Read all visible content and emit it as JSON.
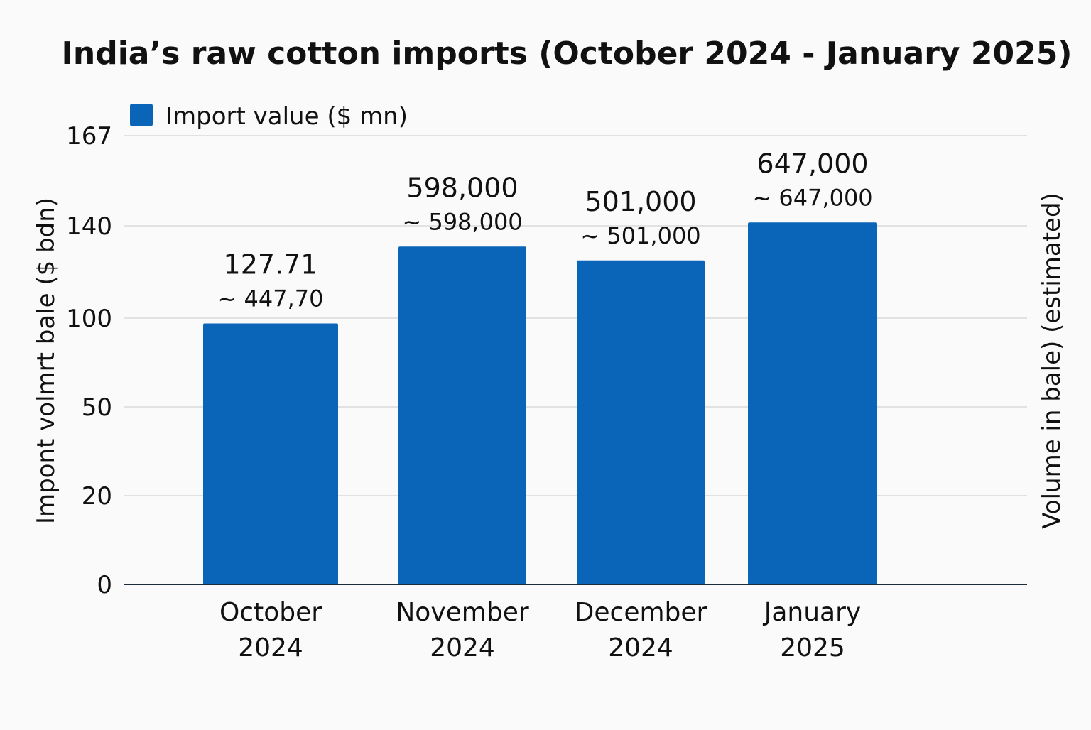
{
  "chart_data": {
    "type": "bar",
    "title": "India’s raw cotton imports (October 2024 - January 2025)",
    "legend": {
      "label": "Import value ($ mn)",
      "placement": "top-left"
    },
    "ylabel_left": "Impont volmrt bale ($ bdn)",
    "ylabel_right": "Volume in bale) (estimated)",
    "y_ticks": [
      {
        "label": "0",
        "value": 0
      },
      {
        "label": "20",
        "value": 20
      },
      {
        "label": "50",
        "value": 50
      },
      {
        "label": "100",
        "value": 100
      },
      {
        "label": "140",
        "value": 140
      },
      {
        "label": "167",
        "value": 167
      }
    ],
    "grid": true,
    "categories": [
      [
        "October",
        "2024"
      ],
      [
        "November",
        "2024"
      ],
      [
        "December",
        "2024"
      ],
      [
        "January",
        "2025"
      ]
    ],
    "values": [
      97,
      131,
      125,
      141
    ],
    "data_labels": [
      "127.71",
      "598,000",
      "501,000",
      "647,000"
    ],
    "sub_labels": [
      "~ 447,70",
      "~ 598,000",
      "~ 501,000",
      "~ 647,000"
    ],
    "colors": {
      "bar": "#0a64b8",
      "grid": "#d9d9d9",
      "axis": "#1c2c3c",
      "text": "#111111",
      "background": "#fafafa"
    }
  }
}
